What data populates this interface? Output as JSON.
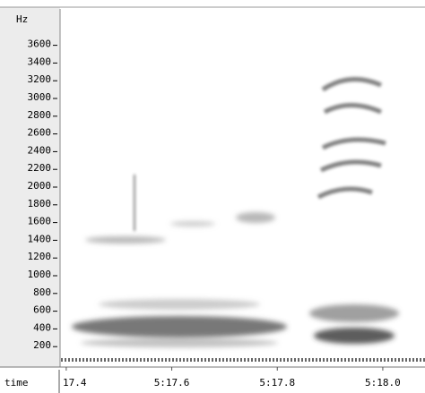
{
  "chart_data": {
    "type": "spectrogram",
    "y_label": "Hz",
    "x_label": "time",
    "ylim": [
      0,
      4000
    ],
    "yticks": [
      200,
      400,
      600,
      800,
      1000,
      1200,
      1400,
      1600,
      1800,
      2000,
      2200,
      2400,
      2600,
      2800,
      3000,
      3200,
      3400,
      3600
    ],
    "xlim": [
      317.39,
      318.08
    ],
    "xticks": [
      {
        "value": 317.4,
        "label": "17.4"
      },
      {
        "value": 317.6,
        "label": "5:17.6"
      },
      {
        "value": 317.8,
        "label": "5:17.8"
      },
      {
        "value": 318.0,
        "label": "5:18.0"
      }
    ]
  }
}
